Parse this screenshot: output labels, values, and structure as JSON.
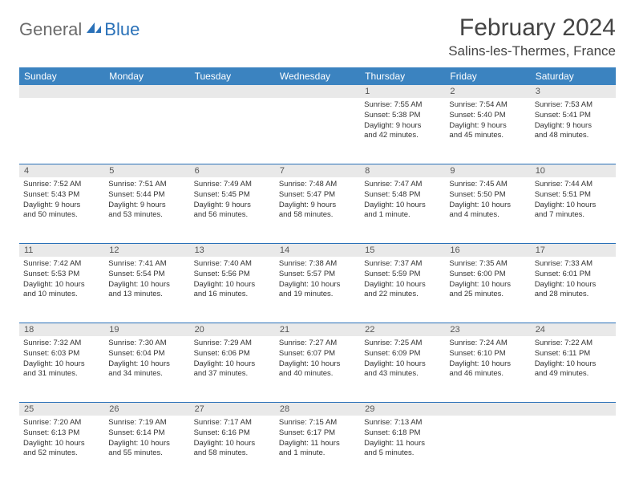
{
  "logo": {
    "general": "General",
    "blue": "Blue"
  },
  "title": "February 2024",
  "location": "Salins-les-Thermes, France",
  "colors": {
    "header_bg": "#3b83c0",
    "header_text": "#ffffff",
    "daynum_bg": "#e9e9e9",
    "border": "#2a71b8",
    "logo_gray": "#6b6b6b",
    "logo_blue": "#2a71b8"
  },
  "day_names": [
    "Sunday",
    "Monday",
    "Tuesday",
    "Wednesday",
    "Thursday",
    "Friday",
    "Saturday"
  ],
  "weeks": [
    [
      {
        "n": "",
        "r": "",
        "s": "",
        "d1": "",
        "d2": ""
      },
      {
        "n": "",
        "r": "",
        "s": "",
        "d1": "",
        "d2": ""
      },
      {
        "n": "",
        "r": "",
        "s": "",
        "d1": "",
        "d2": ""
      },
      {
        "n": "",
        "r": "",
        "s": "",
        "d1": "",
        "d2": ""
      },
      {
        "n": "1",
        "r": "Sunrise: 7:55 AM",
        "s": "Sunset: 5:38 PM",
        "d1": "Daylight: 9 hours",
        "d2": "and 42 minutes."
      },
      {
        "n": "2",
        "r": "Sunrise: 7:54 AM",
        "s": "Sunset: 5:40 PM",
        "d1": "Daylight: 9 hours",
        "d2": "and 45 minutes."
      },
      {
        "n": "3",
        "r": "Sunrise: 7:53 AM",
        "s": "Sunset: 5:41 PM",
        "d1": "Daylight: 9 hours",
        "d2": "and 48 minutes."
      }
    ],
    [
      {
        "n": "4",
        "r": "Sunrise: 7:52 AM",
        "s": "Sunset: 5:43 PM",
        "d1": "Daylight: 9 hours",
        "d2": "and 50 minutes."
      },
      {
        "n": "5",
        "r": "Sunrise: 7:51 AM",
        "s": "Sunset: 5:44 PM",
        "d1": "Daylight: 9 hours",
        "d2": "and 53 minutes."
      },
      {
        "n": "6",
        "r": "Sunrise: 7:49 AM",
        "s": "Sunset: 5:45 PM",
        "d1": "Daylight: 9 hours",
        "d2": "and 56 minutes."
      },
      {
        "n": "7",
        "r": "Sunrise: 7:48 AM",
        "s": "Sunset: 5:47 PM",
        "d1": "Daylight: 9 hours",
        "d2": "and 58 minutes."
      },
      {
        "n": "8",
        "r": "Sunrise: 7:47 AM",
        "s": "Sunset: 5:48 PM",
        "d1": "Daylight: 10 hours",
        "d2": "and 1 minute."
      },
      {
        "n": "9",
        "r": "Sunrise: 7:45 AM",
        "s": "Sunset: 5:50 PM",
        "d1": "Daylight: 10 hours",
        "d2": "and 4 minutes."
      },
      {
        "n": "10",
        "r": "Sunrise: 7:44 AM",
        "s": "Sunset: 5:51 PM",
        "d1": "Daylight: 10 hours",
        "d2": "and 7 minutes."
      }
    ],
    [
      {
        "n": "11",
        "r": "Sunrise: 7:42 AM",
        "s": "Sunset: 5:53 PM",
        "d1": "Daylight: 10 hours",
        "d2": "and 10 minutes."
      },
      {
        "n": "12",
        "r": "Sunrise: 7:41 AM",
        "s": "Sunset: 5:54 PM",
        "d1": "Daylight: 10 hours",
        "d2": "and 13 minutes."
      },
      {
        "n": "13",
        "r": "Sunrise: 7:40 AM",
        "s": "Sunset: 5:56 PM",
        "d1": "Daylight: 10 hours",
        "d2": "and 16 minutes."
      },
      {
        "n": "14",
        "r": "Sunrise: 7:38 AM",
        "s": "Sunset: 5:57 PM",
        "d1": "Daylight: 10 hours",
        "d2": "and 19 minutes."
      },
      {
        "n": "15",
        "r": "Sunrise: 7:37 AM",
        "s": "Sunset: 5:59 PM",
        "d1": "Daylight: 10 hours",
        "d2": "and 22 minutes."
      },
      {
        "n": "16",
        "r": "Sunrise: 7:35 AM",
        "s": "Sunset: 6:00 PM",
        "d1": "Daylight: 10 hours",
        "d2": "and 25 minutes."
      },
      {
        "n": "17",
        "r": "Sunrise: 7:33 AM",
        "s": "Sunset: 6:01 PM",
        "d1": "Daylight: 10 hours",
        "d2": "and 28 minutes."
      }
    ],
    [
      {
        "n": "18",
        "r": "Sunrise: 7:32 AM",
        "s": "Sunset: 6:03 PM",
        "d1": "Daylight: 10 hours",
        "d2": "and 31 minutes."
      },
      {
        "n": "19",
        "r": "Sunrise: 7:30 AM",
        "s": "Sunset: 6:04 PM",
        "d1": "Daylight: 10 hours",
        "d2": "and 34 minutes."
      },
      {
        "n": "20",
        "r": "Sunrise: 7:29 AM",
        "s": "Sunset: 6:06 PM",
        "d1": "Daylight: 10 hours",
        "d2": "and 37 minutes."
      },
      {
        "n": "21",
        "r": "Sunrise: 7:27 AM",
        "s": "Sunset: 6:07 PM",
        "d1": "Daylight: 10 hours",
        "d2": "and 40 minutes."
      },
      {
        "n": "22",
        "r": "Sunrise: 7:25 AM",
        "s": "Sunset: 6:09 PM",
        "d1": "Daylight: 10 hours",
        "d2": "and 43 minutes."
      },
      {
        "n": "23",
        "r": "Sunrise: 7:24 AM",
        "s": "Sunset: 6:10 PM",
        "d1": "Daylight: 10 hours",
        "d2": "and 46 minutes."
      },
      {
        "n": "24",
        "r": "Sunrise: 7:22 AM",
        "s": "Sunset: 6:11 PM",
        "d1": "Daylight: 10 hours",
        "d2": "and 49 minutes."
      }
    ],
    [
      {
        "n": "25",
        "r": "Sunrise: 7:20 AM",
        "s": "Sunset: 6:13 PM",
        "d1": "Daylight: 10 hours",
        "d2": "and 52 minutes."
      },
      {
        "n": "26",
        "r": "Sunrise: 7:19 AM",
        "s": "Sunset: 6:14 PM",
        "d1": "Daylight: 10 hours",
        "d2": "and 55 minutes."
      },
      {
        "n": "27",
        "r": "Sunrise: 7:17 AM",
        "s": "Sunset: 6:16 PM",
        "d1": "Daylight: 10 hours",
        "d2": "and 58 minutes."
      },
      {
        "n": "28",
        "r": "Sunrise: 7:15 AM",
        "s": "Sunset: 6:17 PM",
        "d1": "Daylight: 11 hours",
        "d2": "and 1 minute."
      },
      {
        "n": "29",
        "r": "Sunrise: 7:13 AM",
        "s": "Sunset: 6:18 PM",
        "d1": "Daylight: 11 hours",
        "d2": "and 5 minutes."
      },
      {
        "n": "",
        "r": "",
        "s": "",
        "d1": "",
        "d2": ""
      },
      {
        "n": "",
        "r": "",
        "s": "",
        "d1": "",
        "d2": ""
      }
    ]
  ]
}
